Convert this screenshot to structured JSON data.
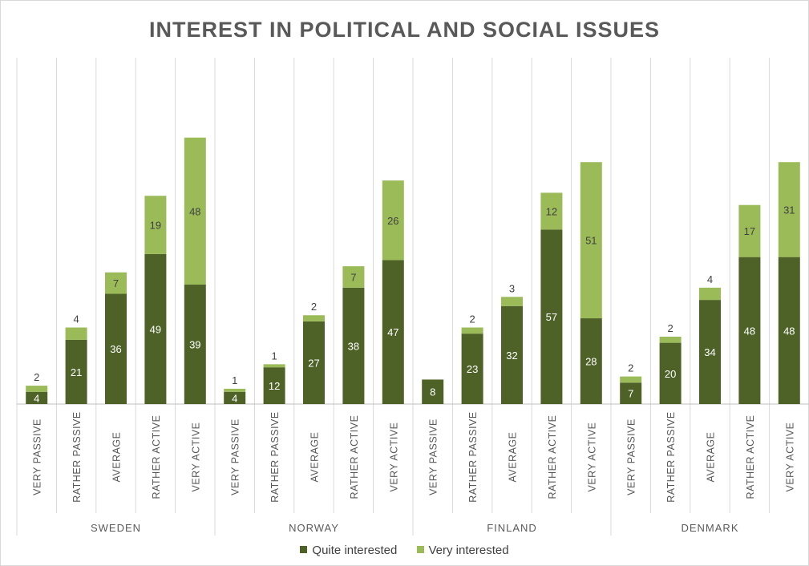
{
  "chart_data": {
    "type": "bar",
    "stacked": true,
    "title": "INTEREST IN POLITICAL AND SOCIAL ISSUES",
    "groups": [
      "SWEDEN",
      "NORWAY",
      "FINLAND",
      "DENMARK"
    ],
    "categories": [
      "VERY PASSIVE",
      "RATHER PASSIVE",
      "AVERAGE",
      "RATHER ACTIVE",
      "VERY ACTIVE"
    ],
    "series": [
      {
        "name": "Quite interested",
        "color": "#4e6228",
        "values": [
          [
            4,
            21,
            36,
            49,
            39
          ],
          [
            4,
            12,
            27,
            38,
            47
          ],
          [
            8,
            23,
            32,
            57,
            28
          ],
          [
            7,
            20,
            34,
            48,
            48
          ]
        ]
      },
      {
        "name": "Very interested",
        "color": "#9bbb59",
        "values": [
          [
            2,
            4,
            7,
            19,
            48
          ],
          [
            1,
            1,
            2,
            7,
            26
          ],
          [
            0,
            2,
            3,
            12,
            51
          ],
          [
            2,
            2,
            4,
            17,
            31
          ]
        ]
      }
    ],
    "value_labels": {
      "Quite interested": [
        [
          "4",
          "21",
          "36",
          "49",
          "39"
        ],
        [
          "4",
          "12",
          "27",
          "38",
          "47"
        ],
        [
          "8",
          "23",
          "32",
          "57",
          "28"
        ],
        [
          "7",
          "20",
          "34",
          "48",
          "48"
        ]
      ],
      "Very interested": [
        [
          "2",
          "4",
          "7",
          "19",
          "48"
        ],
        [
          "1",
          "1",
          "2",
          "7",
          "26"
        ],
        [
          "",
          "2",
          "3",
          "12",
          "51"
        ],
        [
          "2",
          "2",
          "4",
          "17",
          "31"
        ]
      ]
    },
    "ylim": [
      0,
      100
    ],
    "y_axis_visible": false,
    "grid": "vertical separators",
    "legend_position": "bottom"
  }
}
